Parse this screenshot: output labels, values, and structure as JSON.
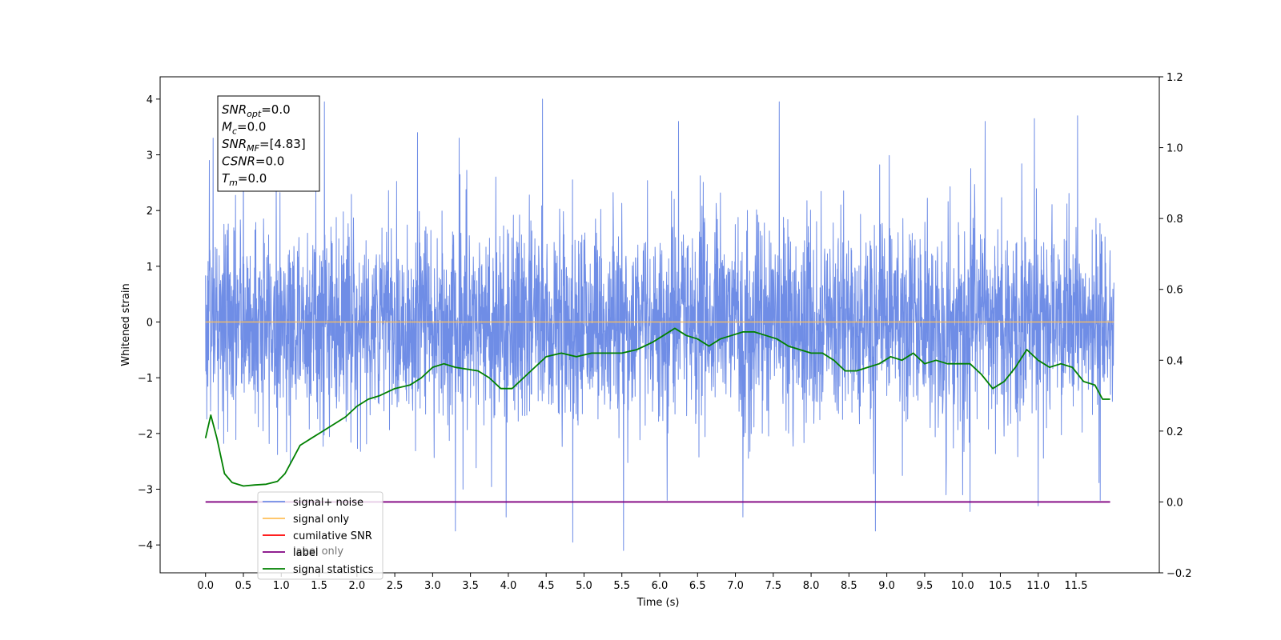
{
  "chart_data": {
    "type": "line",
    "xlabel": "Time (s)",
    "ylabel": "Whitened strain",
    "xlim": [
      -0.6,
      12.6
    ],
    "ylim": [
      -4.5,
      4.4
    ],
    "y2lim": [
      -0.2,
      1.2
    ],
    "x_ticks": [
      "0.0",
      "0.5",
      "1.0",
      "1.5",
      "2.0",
      "2.5",
      "3.0",
      "3.5",
      "4.0",
      "4.5",
      "5.0",
      "5.5",
      "6.0",
      "6.5",
      "7.0",
      "7.5",
      "8.0",
      "8.5",
      "9.0",
      "9.5",
      "10.0",
      "10.5",
      "11.0",
      "11.5"
    ],
    "y_ticks": [
      4,
      3,
      2,
      1,
      0,
      -1,
      -2,
      -3,
      -4
    ],
    "y2_ticks": [
      "1.2",
      "1.0",
      "0.8",
      "0.6",
      "0.4",
      "0.2",
      "0.0",
      "−0.2"
    ],
    "annotation": [
      {
        "name": "SNR",
        "sub": "opt",
        "value": "=0.0"
      },
      {
        "name": "M",
        "sub": "c",
        "value": "=0.0"
      },
      {
        "name": "SNR",
        "sub": "MF",
        "value": "=[4.83]"
      },
      {
        "name": "CSNR",
        "sub": "",
        "value": "=0.0"
      },
      {
        "name": "T",
        "sub": "m",
        "value": "=0.0"
      }
    ],
    "legend_placement": "lower-left",
    "legend": [
      {
        "label": "signal+ noise",
        "color": "#6f8de6"
      },
      {
        "label": "signal only",
        "color": "#ffbf58"
      },
      {
        "label": "cumilative SNR",
        "color": "#ff0000"
      },
      {
        "label": "label",
        "color": "#800080"
      },
      {
        "label": "signal statistics",
        "color": "#008000"
      }
    ],
    "hidden_legend_text": "label only",
    "series": [
      {
        "name": "signal+ noise",
        "axis": "left",
        "color": "#6f8de6",
        "x_range": [
          0.0,
          12.0
        ],
        "noise_std": 0.9,
        "spikes": [
          {
            "x": 0.05,
            "y": 2.9
          },
          {
            "x": 0.1,
            "y": 3.3
          },
          {
            "x": 0.5,
            "y": 3.4
          },
          {
            "x": 1.57,
            "y": 3.95
          },
          {
            "x": 2.8,
            "y": 3.4
          },
          {
            "x": 3.35,
            "y": 3.3
          },
          {
            "x": 4.45,
            "y": 4.0
          },
          {
            "x": 4.85,
            "y": 3.0
          },
          {
            "x": 6.25,
            "y": 3.6
          },
          {
            "x": 7.58,
            "y": 3.95
          },
          {
            "x": 10.3,
            "y": 3.6
          },
          {
            "x": 10.95,
            "y": 3.65
          },
          {
            "x": 11.52,
            "y": 3.7
          },
          {
            "x": 3.3,
            "y": -3.75
          },
          {
            "x": 4.85,
            "y": -3.95
          },
          {
            "x": 5.52,
            "y": -4.1
          },
          {
            "x": 3.4,
            "y": -3.0
          },
          {
            "x": 3.97,
            "y": -3.5
          },
          {
            "x": 8.85,
            "y": -3.75
          },
          {
            "x": 7.1,
            "y": -3.5
          },
          {
            "x": 10.1,
            "y": -3.4
          },
          {
            "x": 11.0,
            "y": -3.3
          },
          {
            "x": 11.82,
            "y": -3.2
          },
          {
            "x": 6.1,
            "y": -3.2
          }
        ]
      },
      {
        "name": "signal only",
        "axis": "left",
        "color": "#ffbf58",
        "x": [
          0.0,
          12.0
        ],
        "y": [
          0.0,
          0.0
        ]
      },
      {
        "name": "label",
        "axis": "right",
        "color": "#800080",
        "x": [
          0.0,
          11.95
        ],
        "y": [
          0.0,
          0.0
        ]
      },
      {
        "name": "signal statistics",
        "axis": "right",
        "color": "#008000",
        "x": [
          0.0,
          0.07,
          0.15,
          0.25,
          0.35,
          0.5,
          0.65,
          0.8,
          0.95,
          1.05,
          1.15,
          1.25,
          1.4,
          1.55,
          1.7,
          1.85,
          2.0,
          2.15,
          2.3,
          2.5,
          2.7,
          2.85,
          3.0,
          3.15,
          3.3,
          3.45,
          3.6,
          3.75,
          3.9,
          4.05,
          4.2,
          4.35,
          4.5,
          4.7,
          4.9,
          5.1,
          5.3,
          5.5,
          5.7,
          5.9,
          6.05,
          6.2,
          6.35,
          6.5,
          6.65,
          6.8,
          6.95,
          7.1,
          7.25,
          7.4,
          7.55,
          7.7,
          7.85,
          8.0,
          8.15,
          8.3,
          8.45,
          8.6,
          8.75,
          8.9,
          9.05,
          9.2,
          9.35,
          9.5,
          9.65,
          9.8,
          9.95,
          10.1,
          10.25,
          10.4,
          10.55,
          10.7,
          10.85,
          11.0,
          11.15,
          11.3,
          11.45,
          11.6,
          11.75,
          11.85,
          11.95
        ],
        "y": [
          0.18,
          0.245,
          0.18,
          0.08,
          0.055,
          0.045,
          0.048,
          0.05,
          0.058,
          0.08,
          0.12,
          0.16,
          0.18,
          0.2,
          0.22,
          0.24,
          0.27,
          0.29,
          0.3,
          0.32,
          0.33,
          0.35,
          0.38,
          0.39,
          0.38,
          0.375,
          0.37,
          0.35,
          0.32,
          0.32,
          0.35,
          0.38,
          0.41,
          0.42,
          0.41,
          0.42,
          0.42,
          0.42,
          0.43,
          0.45,
          0.47,
          0.49,
          0.47,
          0.46,
          0.44,
          0.46,
          0.47,
          0.48,
          0.48,
          0.47,
          0.46,
          0.44,
          0.43,
          0.42,
          0.42,
          0.4,
          0.37,
          0.37,
          0.38,
          0.39,
          0.41,
          0.4,
          0.42,
          0.39,
          0.4,
          0.39,
          0.39,
          0.39,
          0.36,
          0.32,
          0.34,
          0.38,
          0.43,
          0.4,
          0.38,
          0.39,
          0.38,
          0.34,
          0.33,
          0.29,
          0.29
        ]
      }
    ]
  }
}
